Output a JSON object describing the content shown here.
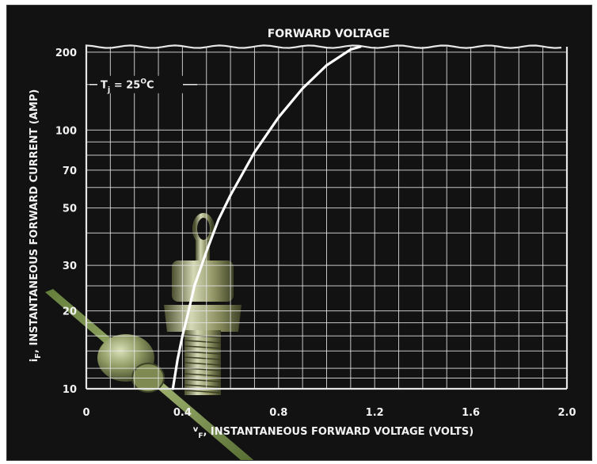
{
  "chart_data": {
    "type": "line",
    "title": "FORWARD VOLTAGE",
    "xlabel": "v<sub>F</sub>, INSTANTANEOUS FORWARD VOLTAGE (VOLTS)",
    "xlabel_parts": {
      "sym": "v",
      "sub": "F",
      "rest": ", INSTANTANEOUS FORWARD VOLTAGE (VOLTS)"
    },
    "ylabel_parts": {
      "sym": "i",
      "sub": "F",
      "rest": ", INSTANTANEOUS FORWARD CURRENT (AMP)"
    },
    "xlim": [
      0,
      2.0
    ],
    "ylim": [
      10,
      210
    ],
    "y_scale": "log",
    "x_ticks": [
      0,
      0.4,
      0.8,
      1.2,
      1.6,
      2.0
    ],
    "x_tick_labels": [
      "0",
      "0.4",
      "0.8",
      "1.2",
      "1.6",
      "2.0"
    ],
    "x_gridlines": [
      0,
      0.1,
      0.2,
      0.3,
      0.4,
      0.5,
      0.6,
      0.7,
      0.8,
      0.9,
      1.0,
      1.1,
      1.2,
      1.3,
      1.4,
      1.5,
      1.6,
      1.7,
      1.8,
      1.9,
      2.0
    ],
    "y_ticks": [
      10,
      20,
      30,
      50,
      70,
      100,
      200
    ],
    "y_tick_labels": [
      "10",
      "20",
      "30",
      "50",
      "70",
      "100",
      "200"
    ],
    "y_gridlines": [
      10,
      11,
      12,
      14,
      16,
      18,
      20,
      25,
      30,
      40,
      50,
      60,
      70,
      80,
      90,
      100,
      150,
      200
    ],
    "grid": true,
    "annotation": {
      "sym": "T",
      "sub": "j",
      "text": " = 25",
      "sup": "O",
      "unit": "C"
    },
    "series": [
      {
        "x": [
          0.36,
          0.38,
          0.4,
          0.42,
          0.45,
          0.5,
          0.55,
          0.6,
          0.7,
          0.8,
          0.9,
          1.0,
          1.1,
          1.14
        ],
        "y": [
          10,
          13,
          16,
          19,
          25,
          34,
          45,
          56,
          82,
          112,
          145,
          178,
          205,
          210
        ]
      }
    ],
    "colors": {
      "background": "#121212",
      "grid": "#e6e6e6",
      "curve": "#ffffff",
      "text": "#f2f2f2"
    }
  }
}
